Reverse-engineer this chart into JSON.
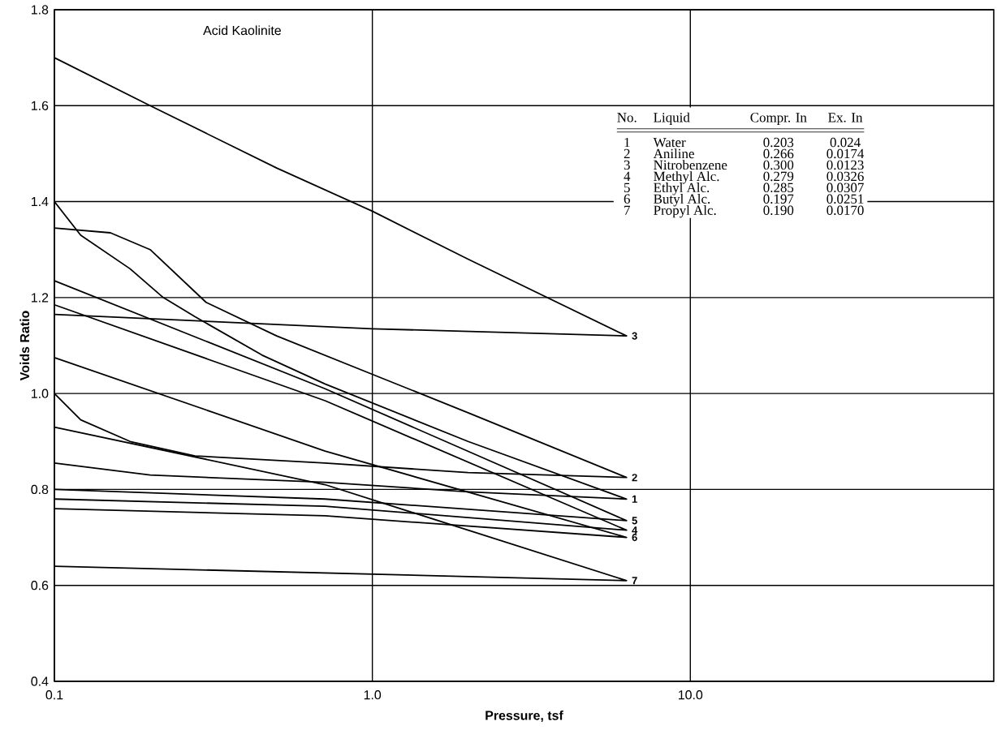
{
  "chart_data": {
    "type": "line",
    "title": "Acid Kaolinite",
    "xlabel": "Pressure, tsf",
    "ylabel": "Voids Ratio",
    "log": "x",
    "grid": true,
    "xlim": [
      0.1,
      90
    ],
    "ylim": [
      0.4,
      1.8
    ],
    "xticks": [
      0.1,
      {
        "value": 1,
        "label": "1.0"
      },
      {
        "value": 10,
        "label": "10.0"
      }
    ],
    "yticks": [
      0.4,
      0.6,
      0.8,
      {
        "value": 1,
        "label": "1.0"
      },
      1.2,
      1.4,
      1.6,
      1.8
    ],
    "series": [
      {
        "name": "1",
        "color": "#000000",
        "x": [
          0.1,
          0.121,
          0.173,
          0.22,
          0.277,
          0.45,
          0.71,
          2,
          6.3,
          2,
          0.71,
          0.2,
          0.1
        ],
        "values": [
          1.4,
          1.33,
          1.26,
          1.2,
          1.16,
          1.08,
          1.02,
          0.9,
          0.78,
          0.795,
          0.815,
          0.83,
          0.855
        ]
      },
      {
        "name": "2",
        "color": "#000000",
        "x": [
          0.1,
          0.15,
          0.2,
          0.3,
          0.5,
          1,
          2,
          6.3,
          2,
          0.71,
          0.277,
          0.173,
          0.121,
          0.1
        ],
        "values": [
          1.345,
          1.335,
          1.3,
          1.19,
          1.12,
          1.04,
          0.96,
          0.825,
          0.835,
          0.855,
          0.87,
          0.9,
          0.945,
          1.0
        ]
      },
      {
        "name": "3",
        "color": "#000000",
        "x": [
          0.1,
          0.2,
          0.5,
          1,
          2,
          6.3,
          1,
          0.1
        ],
        "values": [
          1.7,
          1.6,
          1.47,
          1.38,
          1.28,
          1.12,
          1.135,
          1.165
        ]
      },
      {
        "name": "4",
        "color": "#000000",
        "x": [
          0.1,
          0.71,
          6.3,
          0.71,
          0.1
        ],
        "values": [
          1.185,
          0.985,
          0.715,
          0.765,
          0.78
        ]
      },
      {
        "name": "5",
        "color": "#000000",
        "x": [
          0.1,
          0.71,
          6.3,
          0.71,
          0.1
        ],
        "values": [
          1.235,
          1.01,
          0.735,
          0.78,
          0.8
        ]
      },
      {
        "name": "6",
        "color": "#000000",
        "x": [
          0.1,
          0.71,
          6.3,
          0.71,
          0.1
        ],
        "values": [
          1.075,
          0.88,
          0.7,
          0.745,
          0.76
        ]
      },
      {
        "name": "7",
        "color": "#000000",
        "x": [
          0.1,
          0.71,
          6.3,
          0.1
        ],
        "values": [
          0.93,
          0.81,
          0.61,
          0.64
        ]
      }
    ],
    "annotations": [
      "No.",
      "Liquid",
      "Compr. In",
      "Ex. In",
      "1",
      "Water",
      "0.203",
      "0.024",
      "2",
      "Aniline",
      "0.266",
      "0.0174",
      "3",
      "Nitrobenzene",
      "0.300",
      "0.0123",
      "4",
      "Methyl Alc.",
      "0.279",
      "0.0326",
      "5",
      "Ethyl Alc.",
      "0.285",
      "0.0307",
      "6",
      "Butyl Alc.",
      "0.197",
      "0.0251",
      "7",
      "Propyl Alc.",
      "0.190",
      "0.0170"
    ]
  }
}
